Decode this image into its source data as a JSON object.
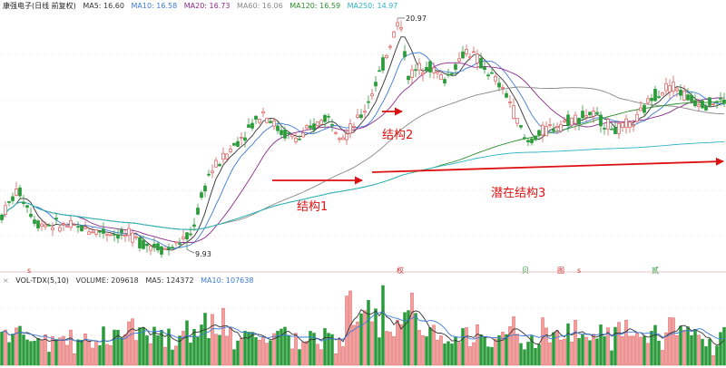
{
  "header": {
    "stock_name": "康强电子(日线 前复权)",
    "ma_items": [
      {
        "label": "MA5: 16.60",
        "color": "#333333"
      },
      {
        "label": "MA10: 16.58",
        "color": "#3c7ad6"
      },
      {
        "label": "MA20: 16.73",
        "color": "#8b2a8b"
      },
      {
        "label": "MA60: 16.06",
        "color": "#888888"
      },
      {
        "label": "MA120: 16.59",
        "color": "#2a8f2a"
      },
      {
        "label": "MA250: 14.97",
        "color": "#2bb5c8"
      }
    ]
  },
  "volume_legend": {
    "indicator": "VOL-TDX(5,10)",
    "items": [
      {
        "label": "VOLUME: 209618",
        "color": "#333333"
      },
      {
        "label": "MA5: 124372",
        "color": "#333333"
      },
      {
        "label": "MA10: 107638",
        "color": "#3c7ad6"
      }
    ]
  },
  "colors": {
    "up": "#e05a5a",
    "down": "#2a9a3a",
    "annotation": "#dd1111"
  },
  "annotations": {
    "structure1": "结构1",
    "structure2": "结构2",
    "structure3": "潜在结构3"
  },
  "chart_data": {
    "type": "candlestick",
    "title": "康强电子(日线 前复权)",
    "price_labels": {
      "high": "20.97",
      "low": "9.93"
    },
    "max_price": 20.97,
    "min_price": 9.93,
    "moving_averages": {
      "MA5": 16.6,
      "MA10": 16.58,
      "MA20": 16.73,
      "MA60": 16.06,
      "MA120": 16.59,
      "MA250": 14.97
    },
    "volume": {
      "VOLUME": 209618,
      "MA5": 124372,
      "MA10": 107638
    },
    "event_markers": [
      "s",
      "权",
      "贝",
      "图",
      "s",
      "贰"
    ],
    "price_anchors": [
      [
        0,
        11.4
      ],
      [
        20,
        12.8
      ],
      [
        40,
        11.2
      ],
      [
        80,
        11.0
      ],
      [
        110,
        10.8
      ],
      [
        140,
        10.6
      ],
      [
        160,
        10.2
      ],
      [
        185,
        9.93
      ],
      [
        210,
        10.6
      ],
      [
        230,
        13.5
      ],
      [
        260,
        15.0
      ],
      [
        290,
        16.5
      ],
      [
        310,
        15.5
      ],
      [
        330,
        15.2
      ],
      [
        360,
        16.3
      ],
      [
        380,
        15.3
      ],
      [
        400,
        16.4
      ],
      [
        420,
        18.5
      ],
      [
        440,
        20.97
      ],
      [
        450,
        18.2
      ],
      [
        470,
        18.8
      ],
      [
        490,
        18.0
      ],
      [
        515,
        19.5
      ],
      [
        540,
        18.3
      ],
      [
        560,
        17.2
      ],
      [
        580,
        15.0
      ],
      [
        600,
        15.6
      ],
      [
        620,
        16.0
      ],
      [
        650,
        16.4
      ],
      [
        680,
        15.6
      ],
      [
        700,
        16.0
      ],
      [
        720,
        17.3
      ],
      [
        740,
        17.8
      ],
      [
        760,
        17.1
      ],
      [
        780,
        16.9
      ],
      [
        795,
        17.0
      ]
    ]
  }
}
